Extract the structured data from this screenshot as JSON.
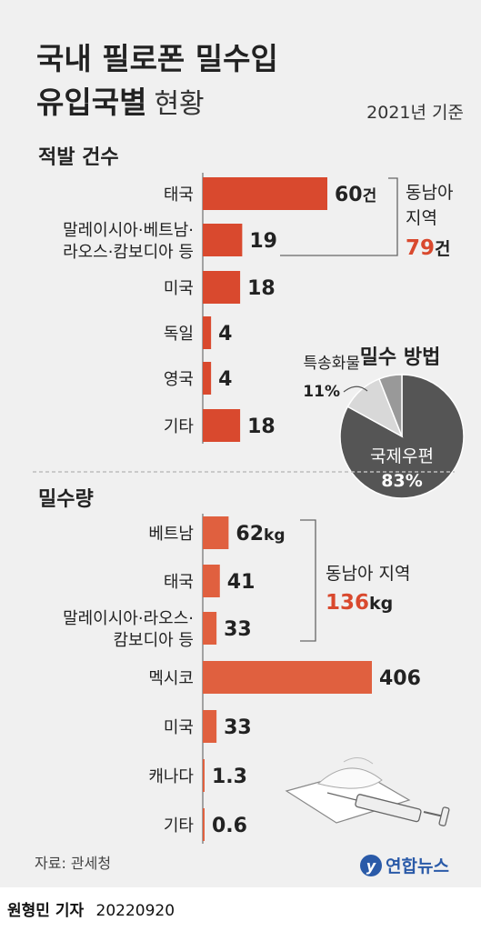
{
  "title_line1": "국내 필로폰 밀수입",
  "title_line2": "유입국별",
  "title_line2_suffix": "현황",
  "basis": "2021년 기준",
  "colors": {
    "bar": "#d9492e",
    "bar_light": "#e0603f",
    "accent": "#d9492e",
    "pie_main": "#555555",
    "pie_light": "#d8d8d8",
    "pie_other": "#999999"
  },
  "chart_data": [
    {
      "type": "bar",
      "orientation": "horizontal",
      "title": "적발 건수",
      "categories": [
        "태국",
        "말레이시아·베트남·\n라오스·캄보디아 등",
        "미국",
        "독일",
        "영국",
        "기타"
      ],
      "values": [
        60,
        19,
        18,
        4,
        4,
        18
      ],
      "value_labels": [
        "60",
        "19",
        "18",
        "4",
        "4",
        "18"
      ],
      "unit": "건",
      "annotation": {
        "label_line1": "동남아",
        "label_line2": "지역",
        "value": "79",
        "unit": "건"
      }
    },
    {
      "type": "pie",
      "title": "밀수 방법",
      "labels": [
        "국제우편",
        "특송화물",
        ""
      ],
      "values": [
        83,
        11,
        6
      ],
      "value_labels": [
        "83%",
        "11%",
        ""
      ]
    },
    {
      "type": "bar",
      "orientation": "horizontal",
      "title": "밀수량",
      "categories": [
        "베트남",
        "태국",
        "말레이시아·라오스·\n캄보디아 등",
        "멕시코",
        "미국",
        "캐나다",
        "기타"
      ],
      "values": [
        62,
        41,
        33,
        406,
        33,
        1.3,
        0.6
      ],
      "value_labels": [
        "62",
        "41",
        "33",
        "406",
        "33",
        "1.3",
        "0.6"
      ],
      "unit": "kg",
      "annotation": {
        "label": "동남아 지역",
        "value": "136",
        "unit": "kg"
      }
    }
  ],
  "source": "자료: 관세청",
  "logo_text": "연합뉴스",
  "credit_name": "원형민 기자",
  "credit_date": "20220920"
}
